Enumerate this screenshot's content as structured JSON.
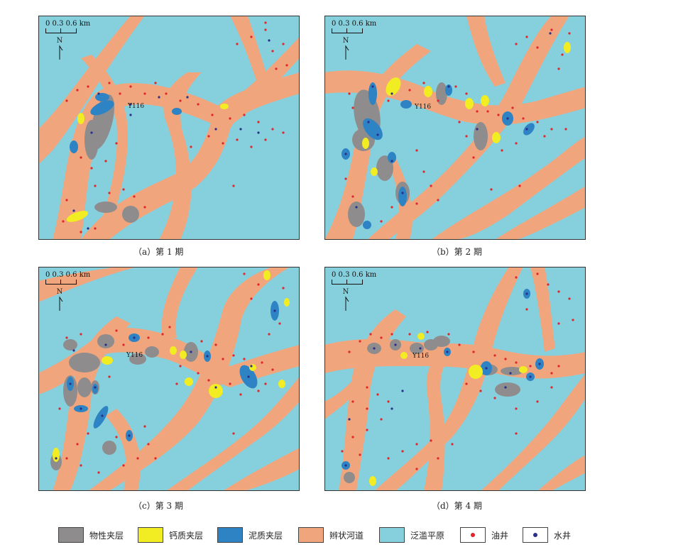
{
  "colors": {
    "floodplain": "#86D0DE",
    "channel": "#F1A57C",
    "physical": "#8F8C8E",
    "calcareous": "#F2EC22",
    "mud": "#2D83C4",
    "oil_well": "#E0262A",
    "water_well": "#2B2E8A"
  },
  "scale_bar": {
    "ticks": "0  0.3  0.6 km",
    "north": "N"
  },
  "well_name": "Y116",
  "panels": [
    {
      "id": "a",
      "caption": "（a）第 1 期"
    },
    {
      "id": "b",
      "caption": "（b）第 2 期"
    },
    {
      "id": "c",
      "caption": "（c）第 3 期"
    },
    {
      "id": "d",
      "caption": "（d）第 4 期"
    }
  ],
  "legend": {
    "physical": "物性夹层",
    "calcareous": "钙质夹层",
    "mud": "泥质夹层",
    "channel": "辫状河道",
    "floodplain": "泛滥平原",
    "oil_well": "油井",
    "water_well": "水井"
  }
}
